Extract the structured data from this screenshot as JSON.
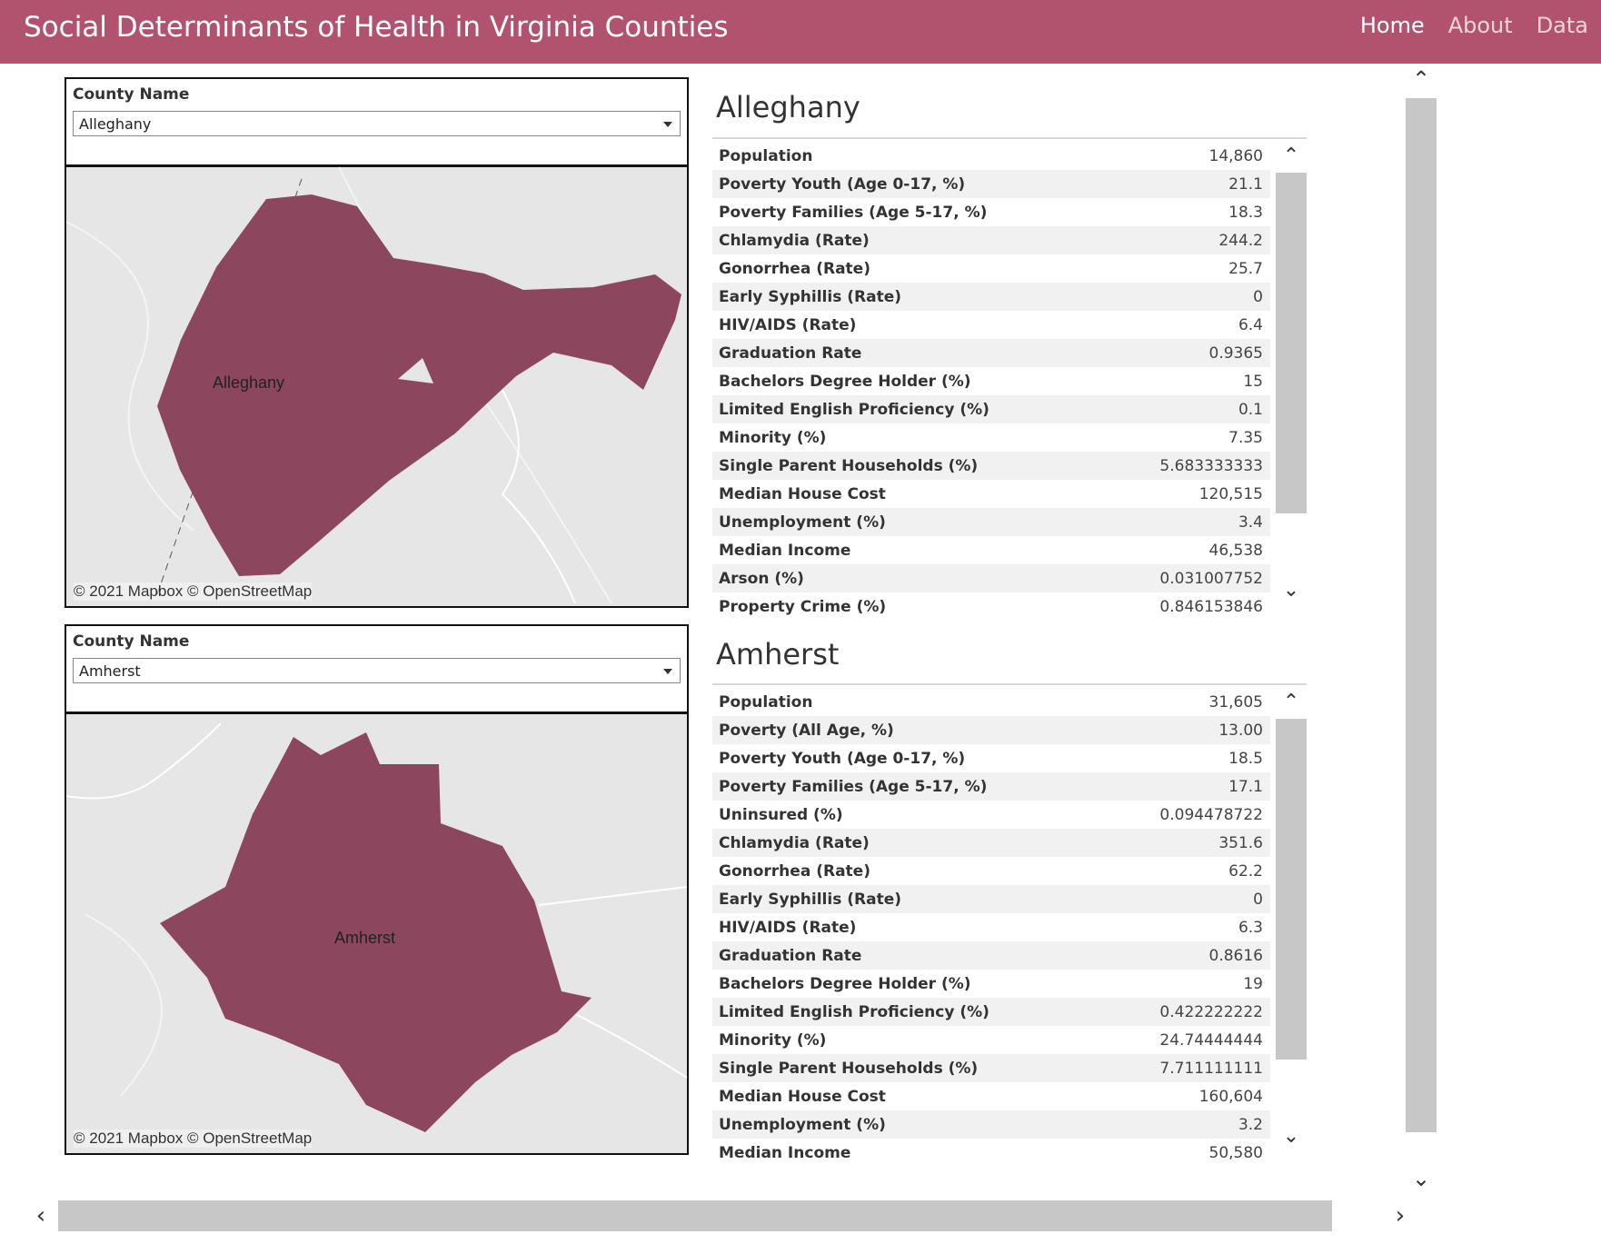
{
  "header": {
    "title": "Social Determinants of Health in Virginia Counties",
    "nav": [
      {
        "label": "Home",
        "active": true
      },
      {
        "label": "About",
        "active": false
      },
      {
        "label": "Data",
        "active": false
      }
    ]
  },
  "colors": {
    "header_bg": "#b1526f",
    "county_fill": "#8c465e",
    "map_bg": "#e6e6e6"
  },
  "panels": [
    {
      "filter_label": "County Name",
      "selected_county": "Alleghany",
      "map_label": "Alleghany",
      "attribution": "© 2021 Mapbox © OpenStreetMap",
      "title": "Alleghany",
      "rows": [
        {
          "key": "Population",
          "value": "14,860"
        },
        {
          "key": "Poverty Youth (Age 0-17, %)",
          "value": "21.1"
        },
        {
          "key": "Poverty Families (Age 5-17, %)",
          "value": "18.3"
        },
        {
          "key": "Chlamydia (Rate)",
          "value": "244.2"
        },
        {
          "key": "Gonorrhea (Rate)",
          "value": "25.7"
        },
        {
          "key": "Early Syphillis (Rate)",
          "value": "0"
        },
        {
          "key": "HIV/AIDS (Rate)",
          "value": "6.4"
        },
        {
          "key": "Graduation Rate",
          "value": "0.9365"
        },
        {
          "key": "Bachelors Degree Holder (%)",
          "value": "15"
        },
        {
          "key": "Limited English Proficiency (%)",
          "value": "0.1"
        },
        {
          "key": "Minority (%)",
          "value": "7.35"
        },
        {
          "key": "Single Parent Households (%)",
          "value": "5.683333333"
        },
        {
          "key": "Median House Cost",
          "value": "120,515"
        },
        {
          "key": "Unemployment (%)",
          "value": "3.4"
        },
        {
          "key": "Median Income",
          "value": "46,538"
        },
        {
          "key": "Arson (%)",
          "value": "0.031007752"
        },
        {
          "key": "Property Crime (%)",
          "value": "0.846153846"
        }
      ]
    },
    {
      "filter_label": "County Name",
      "selected_county": "Amherst",
      "map_label": "Amherst",
      "attribution": "© 2021 Mapbox © OpenStreetMap",
      "title": "Amherst",
      "rows": [
        {
          "key": "Population",
          "value": "31,605"
        },
        {
          "key": "Poverty (All Age, %)",
          "value": "13.00"
        },
        {
          "key": "Poverty Youth (Age 0-17, %)",
          "value": "18.5"
        },
        {
          "key": "Poverty Families (Age 5-17, %)",
          "value": "17.1"
        },
        {
          "key": "Uninsured (%)",
          "value": "0.094478722"
        },
        {
          "key": "Chlamydia (Rate)",
          "value": "351.6"
        },
        {
          "key": "Gonorrhea (Rate)",
          "value": "62.2"
        },
        {
          "key": "Early Syphillis (Rate)",
          "value": "0"
        },
        {
          "key": "HIV/AIDS (Rate)",
          "value": "6.3"
        },
        {
          "key": "Graduation Rate",
          "value": "0.8616"
        },
        {
          "key": "Bachelors Degree Holder (%)",
          "value": "19"
        },
        {
          "key": "Limited English Proficiency (%)",
          "value": "0.422222222"
        },
        {
          "key": "Minority (%)",
          "value": "24.74444444"
        },
        {
          "key": "Single Parent Households (%)",
          "value": "7.711111111"
        },
        {
          "key": "Median House Cost",
          "value": "160,604"
        },
        {
          "key": "Unemployment (%)",
          "value": "3.2"
        },
        {
          "key": "Median Income",
          "value": "50,580"
        }
      ]
    }
  ],
  "icons": {
    "up": "▲-chevron-up-icon",
    "down": "chevron-down-icon",
    "left": "chevron-left-icon",
    "right": "chevron-right-icon"
  }
}
